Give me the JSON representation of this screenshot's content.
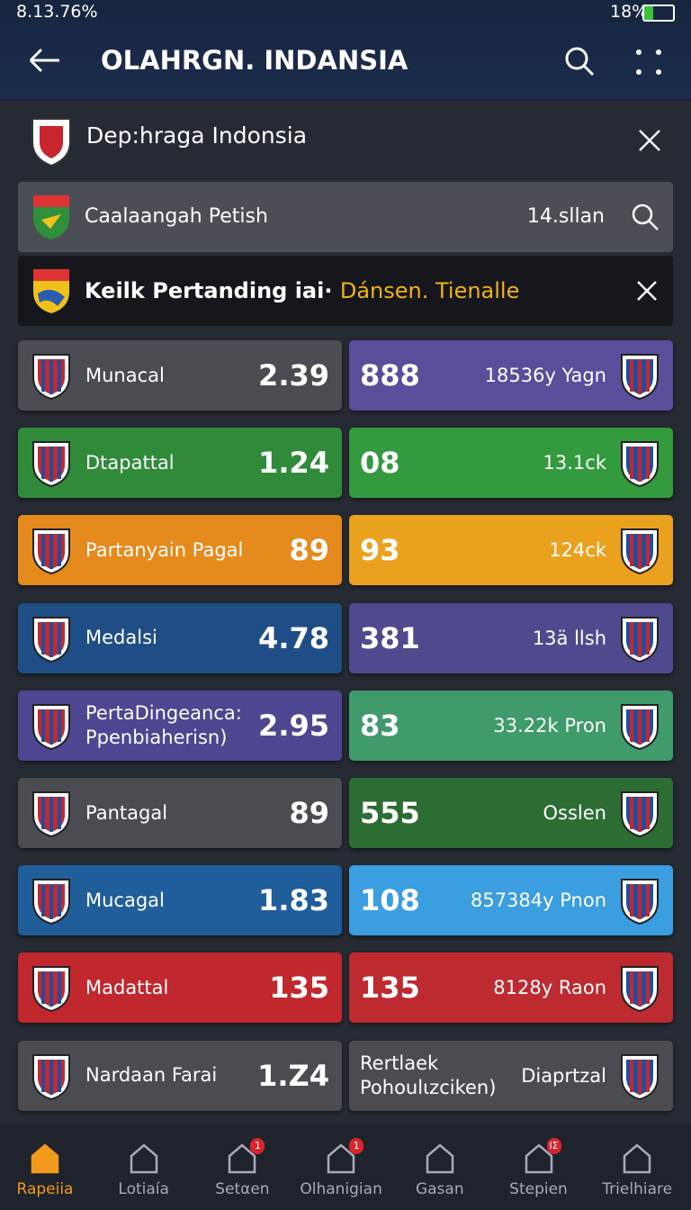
{
  "status_bar": {
    "left": "8.13.76%",
    "battery": "18%"
  },
  "app_bar": {
    "title": "OLAHRGN. INDANSIA"
  },
  "section": {
    "title": "Dep:hraga Indonsia"
  },
  "search_row": {
    "label": "Caalaangah Petish",
    "value": "14.sllan"
  },
  "banner": {
    "text": "Keilk Pertanding iai·",
    "highlight": "Dánsen. Tienalle"
  },
  "rows": [
    {
      "left": {
        "name": "Munacal",
        "value": "2.39"
      },
      "right": {
        "value": "888",
        "label": "18536y Yagn"
      }
    },
    {
      "left": {
        "name": "Dtapattal",
        "value": "1.24"
      },
      "right": {
        "value": "08",
        "label": "13.1ck"
      }
    },
    {
      "left": {
        "name": "Partanyain Pagal",
        "value": "89"
      },
      "right": {
        "value": "93",
        "label": "124ck"
      }
    },
    {
      "left": {
        "name": "Medalsi",
        "value": "4.78"
      },
      "right": {
        "value": "381",
        "label": "13ä llsh"
      }
    },
    {
      "left": {
        "name": "PertaDingeanca: Ppenbiaherisn)",
        "value": "2.95"
      },
      "right": {
        "value": "83",
        "label": "33.22k Pron"
      }
    },
    {
      "left": {
        "name": "Pantagal",
        "value": "89"
      },
      "right": {
        "value": "555",
        "label": "Osslen"
      }
    },
    {
      "left": {
        "name": "Mucagal",
        "value": "1.83"
      },
      "right": {
        "value": "108",
        "label": "857384y Pnon"
      }
    },
    {
      "left": {
        "name": "Madattal",
        "value": "135"
      },
      "right": {
        "value": "135",
        "label": "8128y Raon"
      }
    },
    {
      "left": {
        "name": "Nardaan Farai",
        "value": "1.Z4"
      },
      "right": {
        "value": "Rertlaek Pohoulιzciken)",
        "label": "Diaprtzal"
      }
    }
  ],
  "nav": [
    {
      "label": "Rapeiia"
    },
    {
      "label": "Lotiaía"
    },
    {
      "label": "Setαen",
      "badge": "1"
    },
    {
      "label": "Olhanigian",
      "badge": "1"
    },
    {
      "label": "Gasan"
    },
    {
      "label": "Stepien",
      "badge": "IΣ"
    },
    {
      "label": "Trielhiare"
    }
  ]
}
